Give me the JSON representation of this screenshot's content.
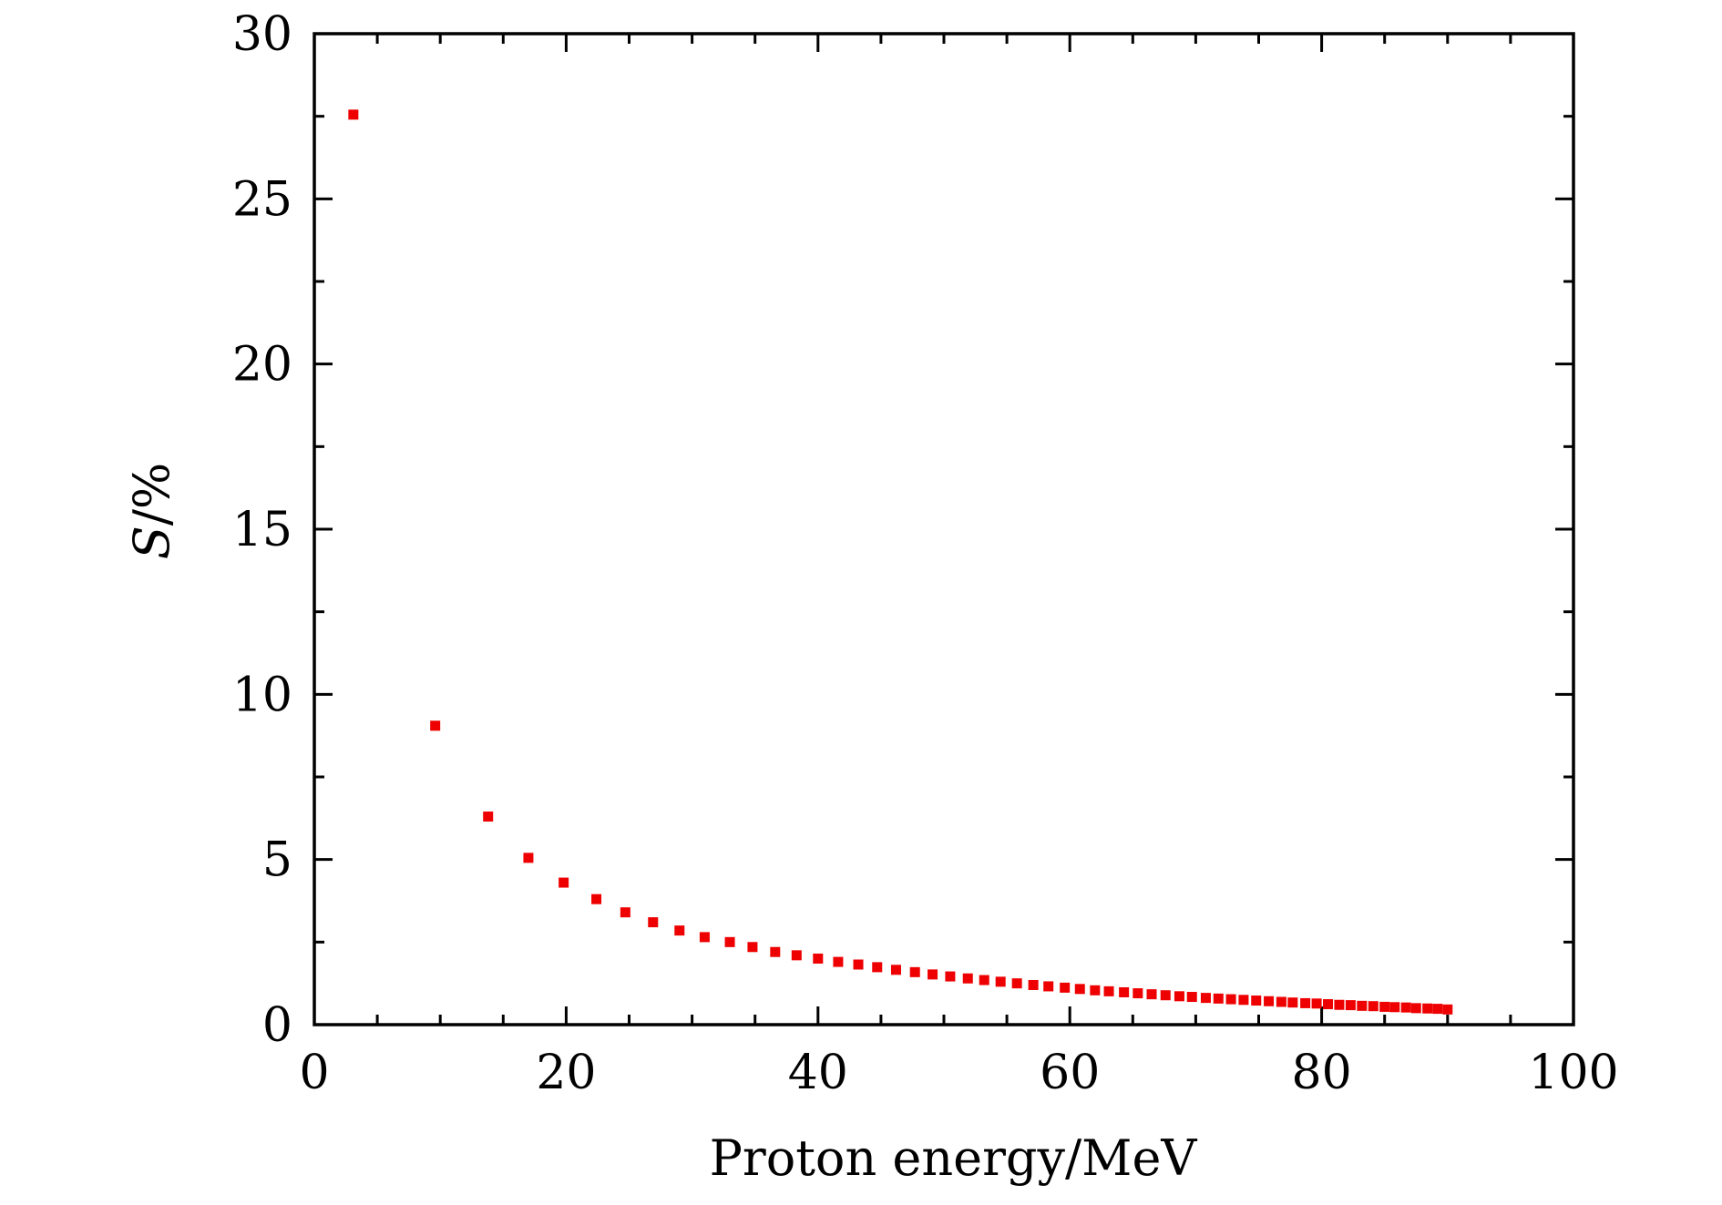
{
  "chart_data": {
    "type": "scatter",
    "title": "",
    "xlabel": "Proton energy/MeV",
    "ylabel_italic": "S",
    "ylabel_rest": "/%",
    "xlim": [
      0,
      100
    ],
    "ylim": [
      0,
      30
    ],
    "x_ticks": [
      0,
      20,
      40,
      60,
      80,
      100
    ],
    "y_ticks": [
      0,
      5,
      10,
      15,
      20,
      25,
      30
    ],
    "x_minor_step": 5,
    "y_minor_step": 2.5,
    "grid": false,
    "legend": "none",
    "marker": "square",
    "marker_color": "#ee0000",
    "series": [
      {
        "name": "S",
        "x": [
          3.1,
          9.6,
          13.8,
          17.0,
          19.8,
          22.4,
          24.7,
          26.9,
          29.0,
          31.0,
          33.0,
          34.8,
          36.6,
          38.3,
          40.0,
          41.6,
          43.2,
          44.7,
          46.2,
          47.7,
          49.1,
          50.5,
          51.9,
          53.2,
          54.5,
          55.8,
          57.1,
          58.3,
          59.6,
          60.8,
          62.0,
          63.1,
          64.3,
          65.4,
          66.5,
          67.6,
          68.7,
          69.7,
          70.8,
          71.8,
          72.8,
          73.8,
          74.8,
          75.8,
          76.8,
          77.7,
          78.7,
          79.6,
          80.5,
          81.4,
          82.3,
          83.2,
          84.1,
          85.0,
          85.8,
          86.7,
          87.5,
          88.4,
          89.2,
          90.0
        ],
        "y": [
          27.55,
          9.05,
          6.3,
          5.05,
          4.3,
          3.8,
          3.4,
          3.1,
          2.85,
          2.65,
          2.5,
          2.35,
          2.2,
          2.1,
          2.0,
          1.9,
          1.82,
          1.74,
          1.66,
          1.59,
          1.52,
          1.46,
          1.4,
          1.35,
          1.3,
          1.25,
          1.2,
          1.16,
          1.12,
          1.08,
          1.04,
          1.01,
          0.98,
          0.95,
          0.92,
          0.89,
          0.86,
          0.84,
          0.81,
          0.79,
          0.77,
          0.75,
          0.73,
          0.71,
          0.69,
          0.67,
          0.65,
          0.64,
          0.62,
          0.6,
          0.59,
          0.57,
          0.56,
          0.54,
          0.53,
          0.52,
          0.5,
          0.49,
          0.48,
          0.46
        ]
      }
    ]
  }
}
